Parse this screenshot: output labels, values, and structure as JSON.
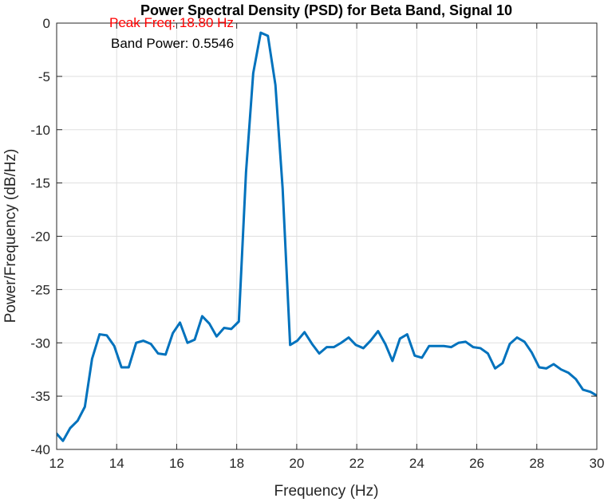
{
  "chart_data": {
    "type": "line",
    "title": "Power Spectral Density (PSD) for Beta Band, Signal 10",
    "x_label": "Frequency (Hz)",
    "y_label": "Power/Frequency (dB/Hz)",
    "annotations": [
      {
        "text": "Peak Freq: 18.80 Hz",
        "color": "#ff0000"
      },
      {
        "text": "Band Power: 0.5546",
        "color": "#000000"
      }
    ],
    "x": [
      11.96,
      12.21,
      12.45,
      12.7,
      12.94,
      13.18,
      13.43,
      13.67,
      13.92,
      14.16,
      14.4,
      14.65,
      14.89,
      15.14,
      15.38,
      15.63,
      15.87,
      16.11,
      16.36,
      16.6,
      16.85,
      17.09,
      17.33,
      17.58,
      17.82,
      18.07,
      18.31,
      18.55,
      18.8,
      19.04,
      19.29,
      19.53,
      19.78,
      20.02,
      20.26,
      20.51,
      20.75,
      21.0,
      21.24,
      21.48,
      21.73,
      21.97,
      22.22,
      22.46,
      22.71,
      22.95,
      23.19,
      23.44,
      23.68,
      23.93,
      24.17,
      24.41,
      24.66,
      24.9,
      25.15,
      25.39,
      25.63,
      25.88,
      26.12,
      26.37,
      26.61,
      26.86,
      27.1,
      27.34,
      27.59,
      27.83,
      28.08,
      28.32,
      28.56,
      28.81,
      29.05,
      29.3,
      29.54,
      29.79,
      30.03
    ],
    "series": [
      {
        "color": "#0072bd",
        "values": [
          -38.4,
          -39.2,
          -38.0,
          -37.3,
          -36.0,
          -31.5,
          -29.2,
          -29.3,
          -30.3,
          -32.3,
          -32.3,
          -30.0,
          -29.8,
          -30.1,
          -31.0,
          -31.1,
          -29.1,
          -28.1,
          -30.0,
          -29.7,
          -27.5,
          -28.2,
          -29.4,
          -28.6,
          -28.7,
          -28.0,
          -14.0,
          -4.7,
          -0.9,
          -1.2,
          -5.8,
          -15.5,
          -30.2,
          -29.8,
          -29.0,
          -30.1,
          -31.0,
          -30.4,
          -30.4,
          -30.0,
          -29.5,
          -30.2,
          -30.5,
          -29.8,
          -28.9,
          -30.1,
          -31.7,
          -29.6,
          -29.2,
          -31.2,
          -31.4,
          -30.3,
          -30.3,
          -30.3,
          -30.4,
          -30.0,
          -29.9,
          -30.4,
          -30.5,
          -31.0,
          -32.4,
          -31.9,
          -30.1,
          -29.5,
          -29.9,
          -30.9,
          -32.3,
          -32.4,
          -32.0,
          -32.5,
          -32.8,
          -33.4,
          -34.4,
          -34.6,
          -35.0
        ]
      }
    ],
    "xlim": [
      12,
      30
    ],
    "xticks": [
      12,
      14,
      16,
      18,
      20,
      22,
      24,
      26,
      28,
      30
    ],
    "ylim": [
      -40,
      0
    ],
    "yticks": [
      -40,
      -35,
      -30,
      -25,
      -20,
      -15,
      -10,
      -5,
      0
    ],
    "grid": true
  }
}
